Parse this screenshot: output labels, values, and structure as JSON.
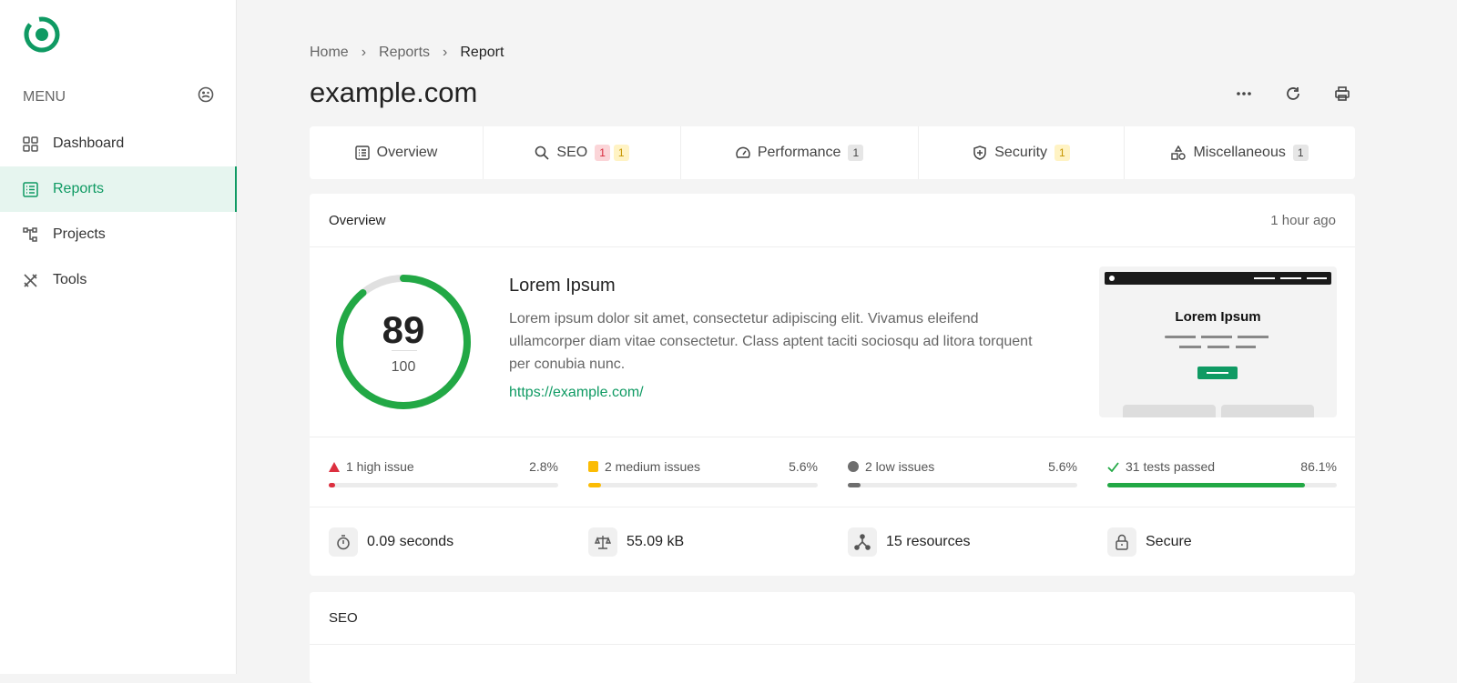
{
  "sidebar": {
    "menu_label": "MENU",
    "items": [
      {
        "label": "Dashboard"
      },
      {
        "label": "Reports",
        "active": true
      },
      {
        "label": "Projects"
      },
      {
        "label": "Tools"
      }
    ]
  },
  "breadcrumb": [
    "Home",
    "Reports",
    "Report"
  ],
  "page_title": "example.com",
  "tabs": [
    {
      "label": "Overview",
      "icon": "list-icon"
    },
    {
      "label": "SEO",
      "icon": "search-icon",
      "badges": [
        "1",
        "1"
      ]
    },
    {
      "label": "Performance",
      "icon": "speedometer-icon",
      "badges": [
        "1"
      ]
    },
    {
      "label": "Security",
      "icon": "shield-icon",
      "badges": [
        "1"
      ]
    },
    {
      "label": "Miscellaneous",
      "icon": "shapes-icon",
      "badges": [
        "1"
      ]
    }
  ],
  "overview": {
    "title": "Overview",
    "time": "1 hour ago",
    "score": "89",
    "max": "100",
    "score_fraction": 0.89,
    "site_title": "Lorem Ipsum",
    "description": "Lorem ipsum dolor sit amet, consectetur adipiscing elit. Vivamus eleifend ullamcorper diam vitae consectetur. Class aptent taciti sociosqu ad litora torquent per conubia nunc.",
    "url": "https://example.com/",
    "thumbnail_title": "Lorem Ipsum",
    "issues": [
      {
        "label": "1 high issue",
        "pct": "2.8%",
        "value": 2.8,
        "color": "#dc2f3f"
      },
      {
        "label": "2 medium issues",
        "pct": "5.6%",
        "value": 5.6,
        "color": "#fbbc05"
      },
      {
        "label": "2 low issues",
        "pct": "5.6%",
        "value": 5.6,
        "color": "#6e6e6e"
      },
      {
        "label": "31 tests passed",
        "pct": "86.1%",
        "value": 86.1,
        "color": "#22a845"
      }
    ],
    "stats": [
      {
        "label": "0.09 seconds",
        "icon": "stopwatch-icon"
      },
      {
        "label": "55.09 kB",
        "icon": "scale-icon"
      },
      {
        "label": "15 resources",
        "icon": "network-icon"
      },
      {
        "label": "Secure",
        "icon": "lock-icon"
      }
    ]
  },
  "seo": {
    "title": "SEO"
  },
  "colors": {
    "accent": "#0f9a63",
    "score": "#22a845"
  }
}
